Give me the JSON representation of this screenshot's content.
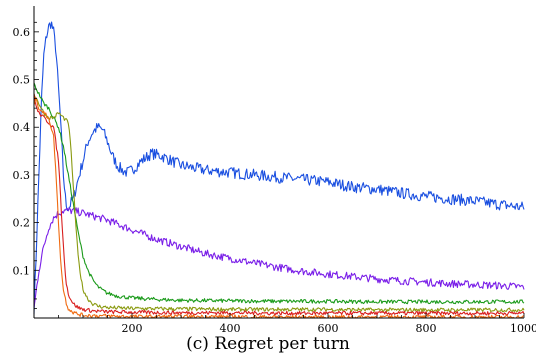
{
  "caption": "(c) Regret per turn",
  "chart_data": {
    "type": "line",
    "title": "",
    "xlabel": "",
    "ylabel": "",
    "xlim": [
      0,
      1000
    ],
    "ylim": [
      0,
      0.65
    ],
    "x_ticks": [
      200,
      400,
      600,
      800,
      1000
    ],
    "y_ticks": [
      0.1,
      0.2,
      0.3,
      0.4,
      0.5,
      0.6
    ],
    "grid": false,
    "legend": "none",
    "series": [
      {
        "color": "#1a4fe0",
        "x": [
          0,
          5,
          10,
          15,
          20,
          25,
          30,
          35,
          40,
          45,
          50,
          55,
          60,
          65,
          70,
          80,
          90,
          100,
          110,
          120,
          130,
          140,
          150,
          160,
          170,
          180,
          190,
          200,
          220,
          240,
          260,
          280,
          300,
          350,
          400,
          450,
          500,
          550,
          600,
          650,
          700,
          750,
          800,
          850,
          900,
          950,
          1000
        ],
        "y": [
          0.02,
          0.15,
          0.3,
          0.45,
          0.55,
          0.59,
          0.61,
          0.62,
          0.6,
          0.56,
          0.48,
          0.4,
          0.3,
          0.24,
          0.23,
          0.25,
          0.29,
          0.33,
          0.37,
          0.39,
          0.4,
          0.395,
          0.37,
          0.34,
          0.32,
          0.31,
          0.305,
          0.31,
          0.33,
          0.345,
          0.34,
          0.33,
          0.32,
          0.31,
          0.305,
          0.3,
          0.295,
          0.29,
          0.285,
          0.275,
          0.27,
          0.262,
          0.255,
          0.25,
          0.245,
          0.238,
          0.232
        ]
      },
      {
        "color": "#7a1fe8",
        "x": [
          0,
          10,
          20,
          30,
          40,
          50,
          60,
          80,
          100,
          150,
          200,
          250,
          300,
          350,
          400,
          450,
          500,
          550,
          600,
          650,
          700,
          750,
          800,
          850,
          900,
          950,
          1000
        ],
        "y": [
          0.02,
          0.1,
          0.15,
          0.19,
          0.21,
          0.22,
          0.225,
          0.225,
          0.22,
          0.205,
          0.185,
          0.165,
          0.15,
          0.135,
          0.125,
          0.115,
          0.106,
          0.098,
          0.092,
          0.087,
          0.082,
          0.078,
          0.075,
          0.072,
          0.07,
          0.068,
          0.065
        ]
      },
      {
        "color": "#1a9a1a",
        "x": [
          0,
          10,
          20,
          30,
          40,
          50,
          60,
          70,
          80,
          90,
          100,
          110,
          120,
          130,
          140,
          150,
          170,
          200,
          250,
          300,
          400,
          500,
          600,
          700,
          800,
          900,
          1000
        ],
        "y": [
          0.49,
          0.47,
          0.45,
          0.44,
          0.42,
          0.4,
          0.36,
          0.3,
          0.24,
          0.18,
          0.13,
          0.1,
          0.08,
          0.066,
          0.058,
          0.052,
          0.046,
          0.042,
          0.039,
          0.037,
          0.036,
          0.035,
          0.035,
          0.034,
          0.034,
          0.034,
          0.034
        ]
      },
      {
        "color": "#8a9a10",
        "x": [
          0,
          10,
          20,
          30,
          40,
          50,
          60,
          70,
          75,
          80,
          85,
          90,
          95,
          100,
          110,
          120,
          130,
          150,
          200,
          300,
          400,
          500,
          600,
          700,
          800,
          900,
          1000
        ],
        "y": [
          0.47,
          0.45,
          0.43,
          0.42,
          0.42,
          0.43,
          0.42,
          0.41,
          0.36,
          0.28,
          0.2,
          0.13,
          0.09,
          0.06,
          0.04,
          0.03,
          0.025,
          0.022,
          0.02,
          0.019,
          0.018,
          0.018,
          0.018,
          0.017,
          0.017,
          0.017,
          0.017
        ]
      },
      {
        "color": "#d81e1e",
        "x": [
          0,
          5,
          10,
          20,
          30,
          40,
          50,
          55,
          60,
          65,
          70,
          80,
          90,
          100,
          120,
          150,
          200,
          300,
          400,
          500,
          600,
          700,
          800,
          900,
          1000
        ],
        "y": [
          0.47,
          0.44,
          0.43,
          0.42,
          0.41,
          0.4,
          0.33,
          0.24,
          0.15,
          0.08,
          0.05,
          0.03,
          0.022,
          0.018,
          0.015,
          0.013,
          0.012,
          0.011,
          0.011,
          0.01,
          0.01,
          0.01,
          0.01,
          0.01,
          0.01
        ]
      },
      {
        "color": "#f06a10",
        "x": [
          0,
          5,
          10,
          20,
          30,
          40,
          45,
          50,
          55,
          60,
          65,
          70,
          80,
          90,
          100,
          150,
          200,
          300,
          400,
          500,
          600,
          700,
          800,
          900,
          1000
        ],
        "y": [
          0.45,
          0.46,
          0.44,
          0.43,
          0.42,
          0.38,
          0.3,
          0.2,
          0.11,
          0.06,
          0.035,
          0.02,
          0.012,
          0.008,
          0.006,
          0.004,
          0.003,
          0.003,
          0.003,
          0.002,
          0.002,
          0.002,
          0.002,
          0.002,
          0.002
        ]
      }
    ]
  }
}
